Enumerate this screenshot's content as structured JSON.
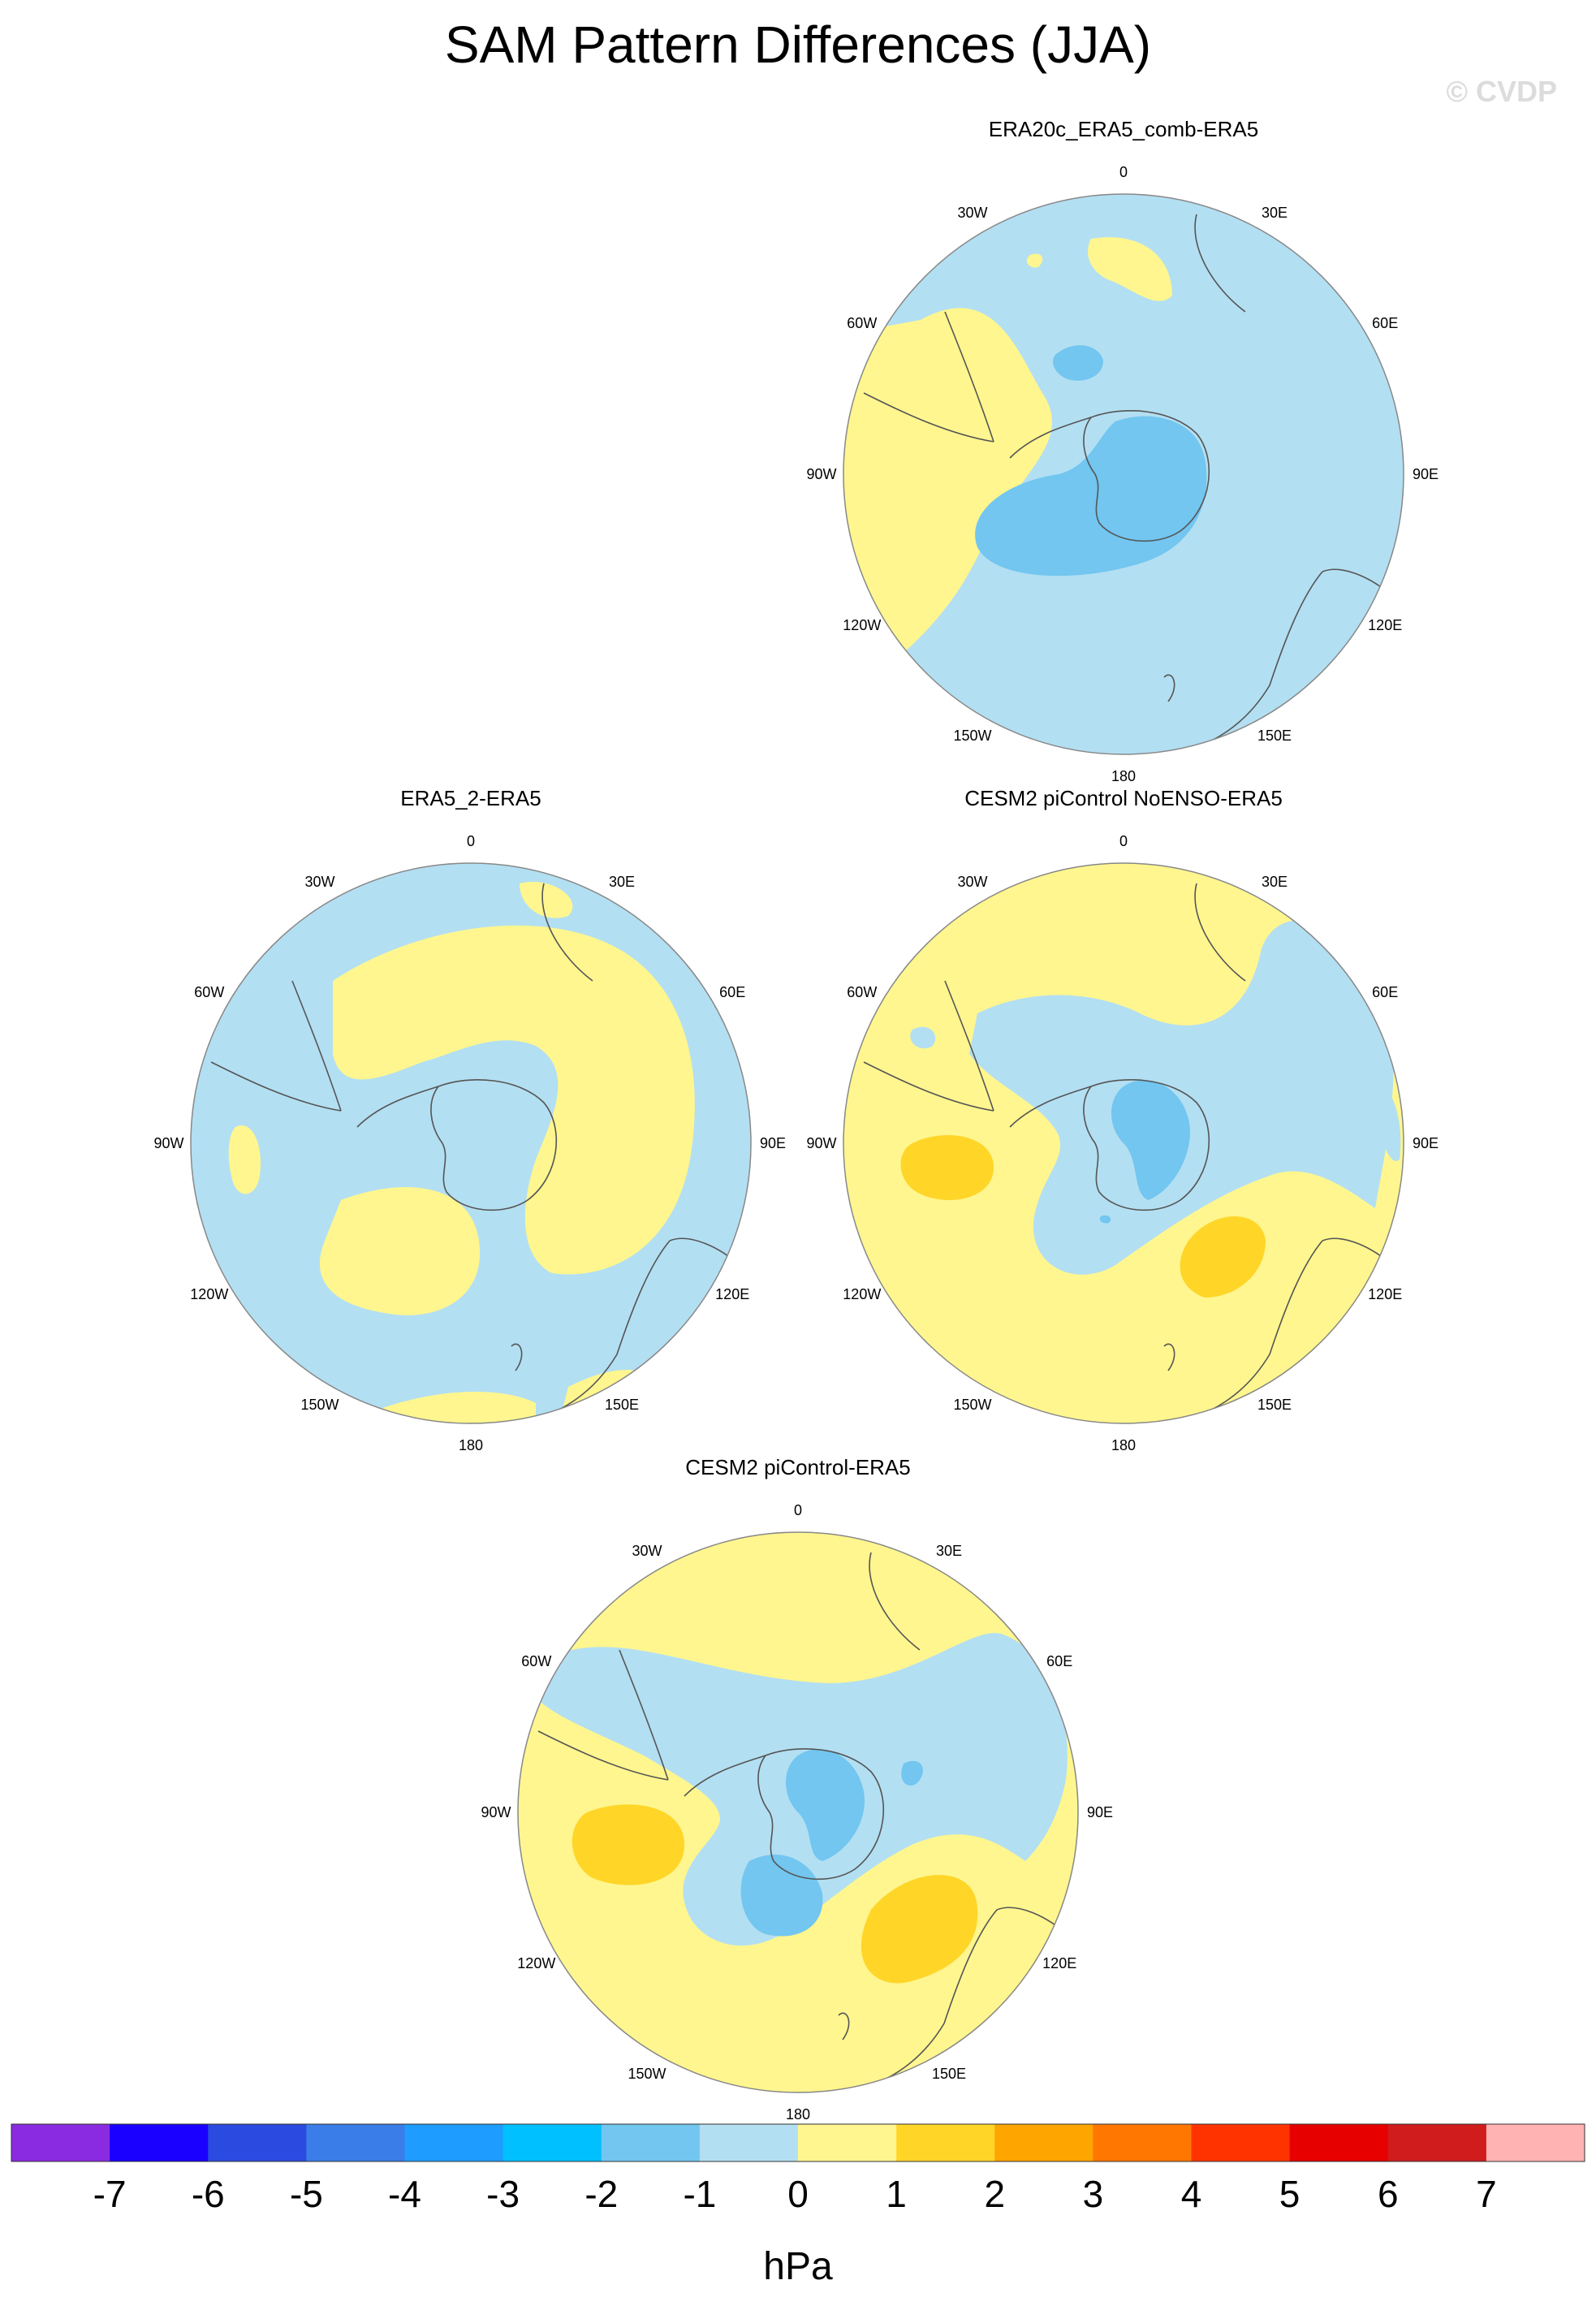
{
  "title": "SAM Pattern Differences (JJA)",
  "watermark": "© CVDP",
  "units": "hPa",
  "colors": {
    "light_blue": "#b3dff2",
    "blue": "#72c6f0",
    "light_yellow": "#fff68f",
    "yellow": "#ffd528",
    "coast": "#555555",
    "outline": "#888888"
  },
  "lon_labels": [
    "0",
    "30E",
    "60E",
    "90E",
    "120E",
    "150E",
    "180",
    "150W",
    "120W",
    "90W",
    "60W",
    "30W"
  ],
  "panels": [
    {
      "name": "ERA20c_ERA5_comb-ERA5",
      "background_level": "-1 to 0"
    },
    {
      "name": "ERA5_2-ERA5",
      "background_level": "-1 to 0"
    },
    {
      "name": "CESM2 piControl NoENSO-ERA5",
      "background_level": "0 to 1"
    },
    {
      "name": "CESM2 piControl-ERA5",
      "background_level": "0 to 1"
    }
  ],
  "chart_data": {
    "type": "heatmap",
    "title": "SAM Pattern Differences (JJA)",
    "projection": "polar stereographic, Southern Hemisphere",
    "units": "hPa",
    "colorbar": {
      "ticks": [
        "-7",
        "-6",
        "-5",
        "-4",
        "-3",
        "-2",
        "-1",
        "0",
        "1",
        "2",
        "3",
        "4",
        "5",
        "6",
        "7"
      ],
      "colors": [
        "#8a2be2",
        "#1a00ff",
        "#2b4ae0",
        "#3a7de8",
        "#1e9cff",
        "#00c0ff",
        "#72c6f0",
        "#b3dff2",
        "#fff68f",
        "#ffd528",
        "#ffa500",
        "#ff7700",
        "#ff3300",
        "#e60000",
        "#d01c1c",
        "#ffb3b3"
      ]
    }
  }
}
